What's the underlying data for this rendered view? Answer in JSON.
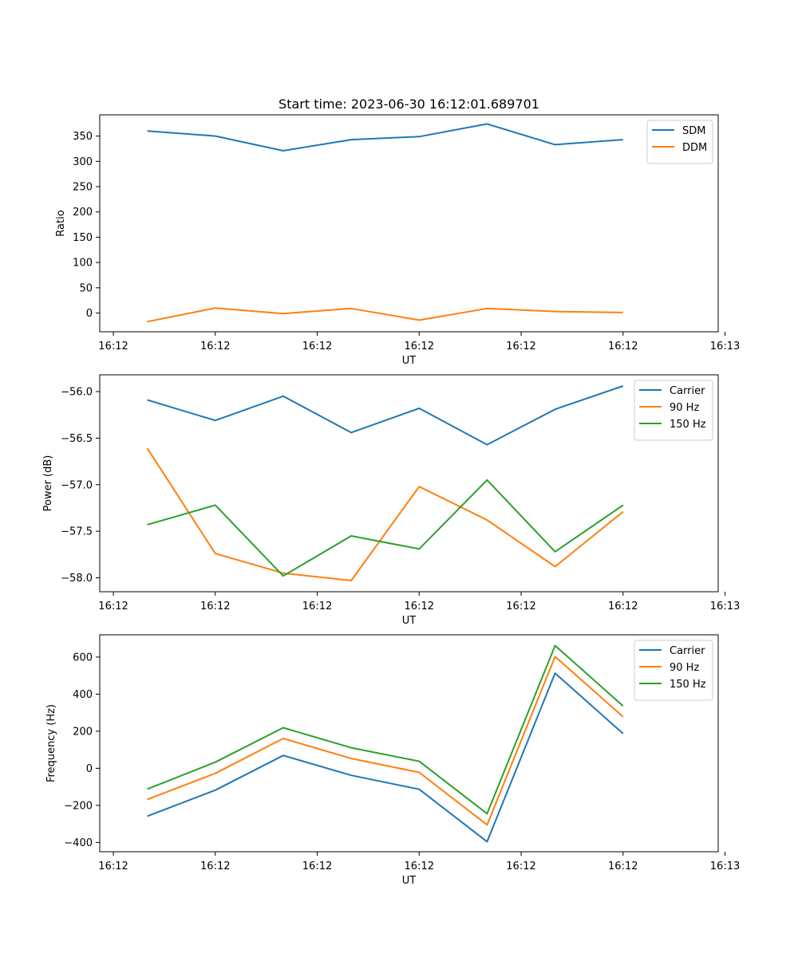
{
  "figure": {
    "title": "Start time: 2023-06-30 16:12:01.689701"
  },
  "chart_data": [
    {
      "type": "line",
      "title": "Start time: 2023-06-30 16:12:01.689701",
      "xlabel": "UT",
      "ylabel": "Ratio",
      "x": [
        1,
        2,
        3,
        4,
        5,
        6,
        7,
        8
      ],
      "xlim": [
        0.3,
        9.4
      ],
      "ylim": [
        -37,
        392
      ],
      "x_ticks": [
        {
          "value": 0.5,
          "label": "16:12"
        },
        {
          "value": 2.0,
          "label": "16:12"
        },
        {
          "value": 3.5,
          "label": "16:12"
        },
        {
          "value": 5.0,
          "label": "16:12"
        },
        {
          "value": 6.5,
          "label": "16:12"
        },
        {
          "value": 8.0,
          "label": "16:12"
        },
        {
          "value": 9.5,
          "label": "16:13"
        }
      ],
      "y_ticks": [
        0,
        50,
        100,
        150,
        200,
        250,
        300,
        350
      ],
      "grid": false,
      "legend": "top-right",
      "series": [
        {
          "name": "SDM",
          "color": "#1f77b4",
          "values": [
            360,
            350,
            321,
            343,
            349,
            374,
            333,
            343
          ]
        },
        {
          "name": "DDM",
          "color": "#ff7f0e",
          "values": [
            -17,
            10,
            -1,
            9,
            -14,
            9,
            3,
            1
          ]
        }
      ]
    },
    {
      "type": "line",
      "title": "",
      "xlabel": "UT",
      "ylabel": "Power (dB)",
      "x": [
        1,
        2,
        3,
        4,
        5,
        6,
        7,
        8
      ],
      "xlim": [
        0.3,
        9.4
      ],
      "ylim": [
        -58.15,
        -55.82
      ],
      "x_ticks": [
        {
          "value": 0.5,
          "label": "16:12"
        },
        {
          "value": 2.0,
          "label": "16:12"
        },
        {
          "value": 3.5,
          "label": "16:12"
        },
        {
          "value": 5.0,
          "label": "16:12"
        },
        {
          "value": 6.5,
          "label": "16:12"
        },
        {
          "value": 8.0,
          "label": "16:12"
        },
        {
          "value": 9.5,
          "label": "16:13"
        }
      ],
      "y_ticks": [
        -58.0,
        -57.5,
        -57.0,
        -56.5,
        -56.0
      ],
      "y_tick_decimals": 1,
      "grid": false,
      "legend": "top-right",
      "series": [
        {
          "name": "Carrier",
          "color": "#1f77b4",
          "values": [
            -56.09,
            -56.31,
            -56.05,
            -56.44,
            -56.18,
            -56.57,
            -56.19,
            -55.94
          ]
        },
        {
          "name": "90 Hz",
          "color": "#ff7f0e",
          "values": [
            -56.61,
            -57.74,
            -57.95,
            -58.03,
            -57.02,
            -57.38,
            -57.88,
            -57.29
          ]
        },
        {
          "name": "150 Hz",
          "color": "#2ca02c",
          "values": [
            -57.43,
            -57.22,
            -57.98,
            -57.55,
            -57.69,
            -56.95,
            -57.72,
            -57.22
          ]
        }
      ]
    },
    {
      "type": "line",
      "title": "",
      "xlabel": "UT",
      "ylabel": "Frequency (Hz)",
      "x": [
        1,
        2,
        3,
        4,
        5,
        6,
        7,
        8
      ],
      "xlim": [
        0.3,
        9.4
      ],
      "ylim": [
        -450,
        720
      ],
      "x_ticks": [
        {
          "value": 0.5,
          "label": "16:12"
        },
        {
          "value": 2.0,
          "label": "16:12"
        },
        {
          "value": 3.5,
          "label": "16:12"
        },
        {
          "value": 5.0,
          "label": "16:12"
        },
        {
          "value": 6.5,
          "label": "16:12"
        },
        {
          "value": 8.0,
          "label": "16:12"
        },
        {
          "value": 9.5,
          "label": "16:13"
        }
      ],
      "y_ticks": [
        -400,
        -200,
        0,
        200,
        400,
        600
      ],
      "grid": false,
      "legend": "top-right",
      "series": [
        {
          "name": "Carrier",
          "color": "#1f77b4",
          "values": [
            -258,
            -118,
            69,
            -38,
            -113,
            -396,
            513,
            187
          ]
        },
        {
          "name": "90 Hz",
          "color": "#ff7f0e",
          "values": [
            -168,
            -27,
            161,
            53,
            -22,
            -305,
            602,
            278
          ]
        },
        {
          "name": "150 Hz",
          "color": "#2ca02c",
          "values": [
            -112,
            33,
            219,
            111,
            38,
            -245,
            662,
            336
          ]
        }
      ]
    }
  ]
}
